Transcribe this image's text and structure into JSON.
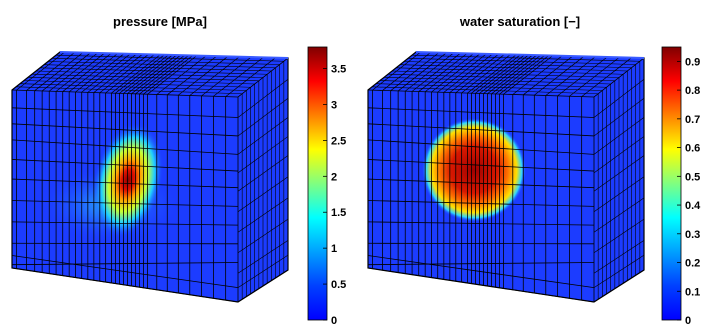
{
  "chart_data": [
    {
      "type": "heatmap",
      "title": "pressure [MPa]",
      "colormap": "jet",
      "colorbar": {
        "min": 0,
        "max": 3.8,
        "ticks": [
          "0",
          "0.5",
          "1",
          "1.5",
          "2",
          "2.5",
          "3",
          "3.5"
        ],
        "tick_values": [
          0,
          0.5,
          1,
          1.5,
          2,
          2.5,
          3,
          3.5
        ]
      },
      "field": {
        "peak_value": 3.7,
        "background_value": 0.1
      }
    },
    {
      "type": "heatmap",
      "title": "water saturation [−]",
      "colormap": "jet",
      "colorbar": {
        "min": 0,
        "max": 0.95,
        "ticks": [
          "0",
          "0.1",
          "0.2",
          "0.3",
          "0.4",
          "0.5",
          "0.6",
          "0.7",
          "0.8",
          "0.9"
        ],
        "tick_values": [
          0,
          0.1,
          0.2,
          0.3,
          0.4,
          0.5,
          0.6,
          0.7,
          0.8,
          0.9
        ]
      },
      "field": {
        "peak_value": 0.85,
        "background_value": 0.05
      }
    }
  ],
  "colors": {
    "grid_line": "#000000",
    "background_blue": "#1c3cff"
  }
}
